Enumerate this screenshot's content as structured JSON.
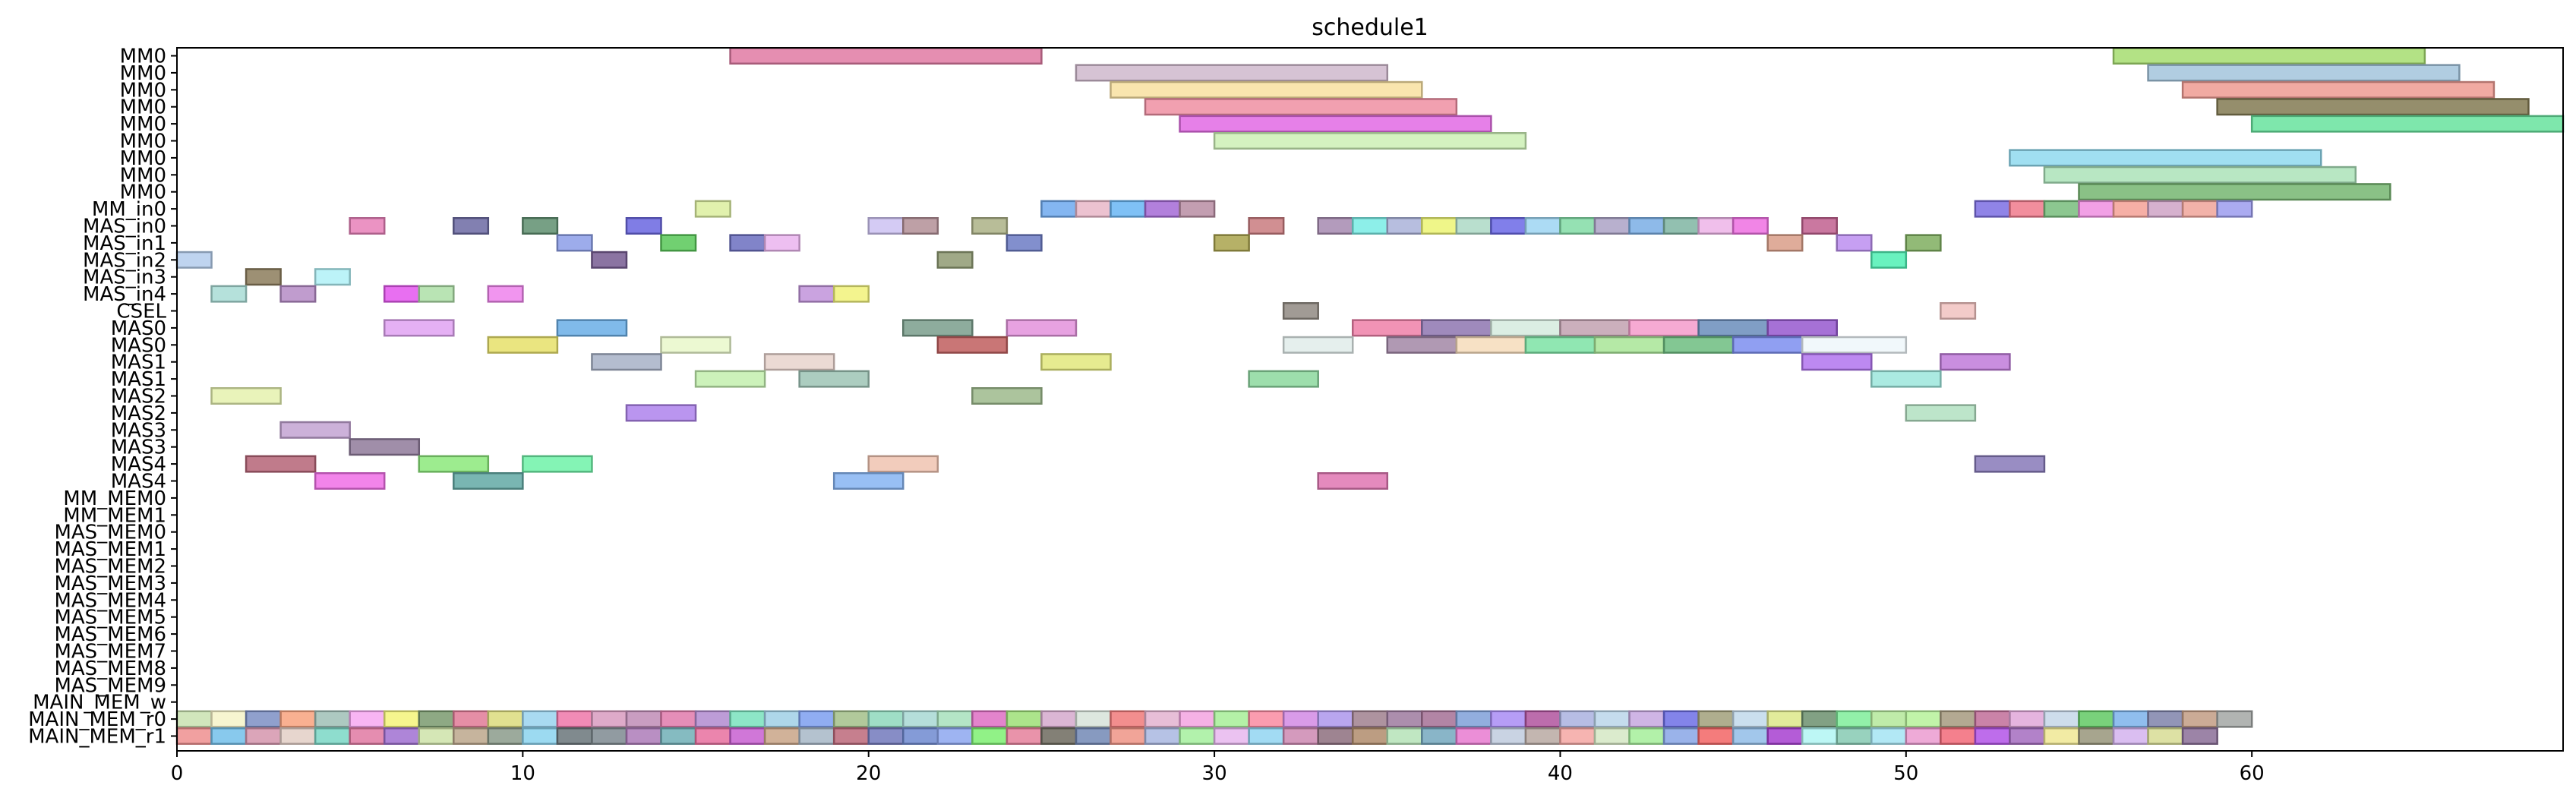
{
  "chart_data": {
    "type": "bar",
    "orientation": "horizontal",
    "title": "schedule1",
    "xlabel": "",
    "ylabel": "",
    "xlim": [
      0,
      69
    ],
    "xticks": [
      0,
      10,
      20,
      30,
      40,
      50,
      60
    ],
    "grid": false,
    "rows": [
      "MM0",
      "MM0",
      "MM0",
      "MM0",
      "MM0",
      "MM0",
      "MM0",
      "MM0",
      "MM0",
      "MM_in0",
      "MAS_in0",
      "MAS_in1",
      "MAS_in2",
      "MAS_in3",
      "MAS_in4",
      "CSEL",
      "MAS0",
      "MAS0",
      "MAS1",
      "MAS1",
      "MAS2",
      "MAS2",
      "MAS3",
      "MAS3",
      "MAS4",
      "MAS4",
      "MM_MEM0",
      "MM_MEM1",
      "MAS_MEM0",
      "MAS_MEM1",
      "MAS_MEM2",
      "MAS_MEM3",
      "MAS_MEM4",
      "MAS_MEM5",
      "MAS_MEM6",
      "MAS_MEM7",
      "MAS_MEM8",
      "MAS_MEM9",
      "MAIN_MEM_w",
      "MAIN_MEM_r0",
      "MAIN_MEM_r1"
    ],
    "tasks": [
      {
        "row": 0,
        "start": 16,
        "end": 25,
        "color": "#e07aa3"
      },
      {
        "row": 0,
        "start": 56,
        "end": 65,
        "color": "#a6dd70"
      },
      {
        "row": 1,
        "start": 26,
        "end": 35,
        "color": "#cfb8cc"
      },
      {
        "row": 1,
        "start": 57,
        "end": 66,
        "color": "#a3c4dc"
      },
      {
        "row": 2,
        "start": 27,
        "end": 36,
        "color": "#f8e0a0"
      },
      {
        "row": 2,
        "start": 58,
        "end": 67,
        "color": "#ef9b92"
      },
      {
        "row": 3,
        "start": 28,
        "end": 37,
        "color": "#ee8fa2"
      },
      {
        "row": 3,
        "start": 59,
        "end": 68,
        "color": "#837a52"
      },
      {
        "row": 4,
        "start": 29,
        "end": 38,
        "color": "#e26ae4"
      },
      {
        "row": 4,
        "start": 60,
        "end": 69,
        "color": "#67e39d"
      },
      {
        "row": 5,
        "start": 30,
        "end": 39,
        "color": "#ccf0b5"
      },
      {
        "row": 6,
        "start": 53,
        "end": 62,
        "color": "#8fd9ef"
      },
      {
        "row": 7,
        "start": 54,
        "end": 63,
        "color": "#abe3b9"
      },
      {
        "row": 8,
        "start": 55,
        "end": 64,
        "color": "#76b671"
      },
      {
        "row": 9,
        "start": 15,
        "end": 16,
        "color": "#dcef9f"
      },
      {
        "row": 9,
        "start": 25,
        "end": 26,
        "color": "#6ea9ef"
      },
      {
        "row": 9,
        "start": 26,
        "end": 27,
        "color": "#e9b7c8"
      },
      {
        "row": 9,
        "start": 27,
        "end": 28,
        "color": "#69b6f4"
      },
      {
        "row": 9,
        "start": 28,
        "end": 29,
        "color": "#a56ad6"
      },
      {
        "row": 9,
        "start": 29,
        "end": 30,
        "color": "#b98da3"
      },
      {
        "row": 9,
        "start": 52,
        "end": 53,
        "color": "#7d6fe3"
      },
      {
        "row": 9,
        "start": 53,
        "end": 54,
        "color": "#f07a8c"
      },
      {
        "row": 9,
        "start": 54,
        "end": 55,
        "color": "#78bd7c"
      },
      {
        "row": 9,
        "start": 55,
        "end": 56,
        "color": "#ef8fe1"
      },
      {
        "row": 9,
        "start": 56,
        "end": 57,
        "color": "#f4a196"
      },
      {
        "row": 9,
        "start": 57,
        "end": 58,
        "color": "#cfa3c6"
      },
      {
        "row": 9,
        "start": 58,
        "end": 59,
        "color": "#f0a49a"
      },
      {
        "row": 9,
        "start": 59,
        "end": 60,
        "color": "#9c9cef"
      },
      {
        "row": 10,
        "start": 5,
        "end": 6,
        "color": "#e880b9"
      },
      {
        "row": 10,
        "start": 8,
        "end": 9,
        "color": "#6c6aa3"
      },
      {
        "row": 10,
        "start": 10,
        "end": 11,
        "color": "#5f8f70"
      },
      {
        "row": 10,
        "start": 13,
        "end": 14,
        "color": "#6a66e0"
      },
      {
        "row": 10,
        "start": 20,
        "end": 21,
        "color": "#cdc2f2"
      },
      {
        "row": 10,
        "start": 21,
        "end": 22,
        "color": "#b38f97"
      },
      {
        "row": 10,
        "start": 23,
        "end": 24,
        "color": "#acb186"
      },
      {
        "row": 10,
        "start": 31,
        "end": 32,
        "color": "#c97b7f"
      },
      {
        "row": 10,
        "start": 33,
        "end": 34,
        "color": "#a68ab0"
      },
      {
        "row": 10,
        "start": 34,
        "end": 35,
        "color": "#79ece5"
      },
      {
        "row": 10,
        "start": 35,
        "end": 36,
        "color": "#aab3d9"
      },
      {
        "row": 10,
        "start": 36,
        "end": 37,
        "color": "#ecf474"
      },
      {
        "row": 10,
        "start": 37,
        "end": 38,
        "color": "#add9c6"
      },
      {
        "row": 10,
        "start": 38,
        "end": 39,
        "color": "#6b68e6"
      },
      {
        "row": 10,
        "start": 39,
        "end": 40,
        "color": "#9ed5f2"
      },
      {
        "row": 10,
        "start": 40,
        "end": 41,
        "color": "#83dca6"
      },
      {
        "row": 10,
        "start": 41,
        "end": 42,
        "color": "#aba2c5"
      },
      {
        "row": 10,
        "start": 42,
        "end": 43,
        "color": "#7aaee5"
      },
      {
        "row": 10,
        "start": 43,
        "end": 44,
        "color": "#7fb5a2"
      },
      {
        "row": 10,
        "start": 44,
        "end": 45,
        "color": "#edb4e8"
      },
      {
        "row": 10,
        "start": 45,
        "end": 46,
        "color": "#ee70e2"
      },
      {
        "row": 10,
        "start": 47,
        "end": 48,
        "color": "#c1608f"
      },
      {
        "row": 11,
        "start": 11,
        "end": 12,
        "color": "#8c9ee8"
      },
      {
        "row": 11,
        "start": 14,
        "end": 15,
        "color": "#58c858"
      },
      {
        "row": 11,
        "start": 16,
        "end": 17,
        "color": "#6b6fc0"
      },
      {
        "row": 11,
        "start": 17,
        "end": 18,
        "color": "#eab4ee"
      },
      {
        "row": 11,
        "start": 24,
        "end": 25,
        "color": "#6c7bc4"
      },
      {
        "row": 11,
        "start": 30,
        "end": 31,
        "color": "#a9a34c"
      },
      {
        "row": 11,
        "start": 46,
        "end": 47,
        "color": "#d99e88"
      },
      {
        "row": 11,
        "start": 48,
        "end": 49,
        "color": "#bc8ef0"
      },
      {
        "row": 11,
        "start": 50,
        "end": 51,
        "color": "#7fae5f"
      },
      {
        "row": 12,
        "start": 0,
        "end": 1,
        "color": "#b4cdec"
      },
      {
        "row": 12,
        "start": 12,
        "end": 13,
        "color": "#775c92"
      },
      {
        "row": 12,
        "start": 22,
        "end": 23,
        "color": "#8f9a72"
      },
      {
        "row": 12,
        "start": 49,
        "end": 50,
        "color": "#4ff0b4"
      },
      {
        "row": 13,
        "start": 2,
        "end": 3,
        "color": "#8c7c5c"
      },
      {
        "row": 13,
        "start": 4,
        "end": 5,
        "color": "#b0f1f7"
      },
      {
        "row": 14,
        "start": 1,
        "end": 2,
        "color": "#a8dcd5"
      },
      {
        "row": 14,
        "start": 3,
        "end": 4,
        "color": "#b58bc6"
      },
      {
        "row": 14,
        "start": 6,
        "end": 7,
        "color": "#e456ee"
      },
      {
        "row": 14,
        "start": 7,
        "end": 8,
        "color": "#addfa7"
      },
      {
        "row": 14,
        "start": 9,
        "end": 10,
        "color": "#ee82ec"
      },
      {
        "row": 14,
        "start": 18,
        "end": 19,
        "color": "#c193da"
      },
      {
        "row": 14,
        "start": 19,
        "end": 20,
        "color": "#f1f27a"
      },
      {
        "row": 15,
        "start": 32,
        "end": 33,
        "color": "#918a82"
      },
      {
        "row": 15,
        "start": 51,
        "end": 52,
        "color": "#f1c2c0"
      },
      {
        "row": 16,
        "start": 6,
        "end": 8,
        "color": "#e0a2f2"
      },
      {
        "row": 16,
        "start": 11,
        "end": 13,
        "color": "#6aaee6"
      },
      {
        "row": 16,
        "start": 21,
        "end": 23,
        "color": "#7a9e8c"
      },
      {
        "row": 16,
        "start": 24,
        "end": 26,
        "color": "#e392dc"
      },
      {
        "row": 16,
        "start": 34,
        "end": 36,
        "color": "#ee80a8"
      },
      {
        "row": 16,
        "start": 36,
        "end": 38,
        "color": "#8e76b0"
      },
      {
        "row": 16,
        "start": 38,
        "end": 40,
        "color": "#d5ebde"
      },
      {
        "row": 16,
        "start": 40,
        "end": 42,
        "color": "#c2a1b0"
      },
      {
        "row": 16,
        "start": 42,
        "end": 44,
        "color": "#f59bcb"
      },
      {
        "row": 16,
        "start": 44,
        "end": 46,
        "color": "#6a8dbb"
      },
      {
        "row": 16,
        "start": 46,
        "end": 48,
        "color": "#9658cf"
      },
      {
        "row": 17,
        "start": 9,
        "end": 11,
        "color": "#e6e06a"
      },
      {
        "row": 17,
        "start": 14,
        "end": 16,
        "color": "#e9f8ca"
      },
      {
        "row": 17,
        "start": 22,
        "end": 24,
        "color": "#c05e5e"
      },
      {
        "row": 17,
        "start": 32,
        "end": 34,
        "color": "#e1ecea"
      },
      {
        "row": 17,
        "start": 35,
        "end": 37,
        "color": "#a287a6"
      },
      {
        "row": 17,
        "start": 37,
        "end": 39,
        "color": "#f6dcbb"
      },
      {
        "row": 17,
        "start": 39,
        "end": 41,
        "color": "#7ce3a4"
      },
      {
        "row": 17,
        "start": 41,
        "end": 43,
        "color": "#a8e597"
      },
      {
        "row": 17,
        "start": 43,
        "end": 45,
        "color": "#6dbd80"
      },
      {
        "row": 17,
        "start": 45,
        "end": 47,
        "color": "#7c8ef0"
      },
      {
        "row": 17,
        "start": 47,
        "end": 50,
        "color": "#eef7fa"
      },
      {
        "row": 18,
        "start": 12,
        "end": 14,
        "color": "#a7b1c7"
      },
      {
        "row": 18,
        "start": 17,
        "end": 19,
        "color": "#e8d3cd"
      },
      {
        "row": 18,
        "start": 25,
        "end": 27,
        "color": "#e2e87c"
      },
      {
        "row": 18,
        "start": 47,
        "end": 49,
        "color": "#b174ef"
      },
      {
        "row": 18,
        "start": 51,
        "end": 53,
        "color": "#c07ad9"
      },
      {
        "row": 19,
        "start": 15,
        "end": 17,
        "color": "#c3f0ae"
      },
      {
        "row": 19,
        "start": 18,
        "end": 20,
        "color": "#9dc4b5"
      },
      {
        "row": 19,
        "start": 31,
        "end": 33,
        "color": "#8cd89e"
      },
      {
        "row": 19,
        "start": 49,
        "end": 51,
        "color": "#9ce6dc"
      },
      {
        "row": 20,
        "start": 1,
        "end": 3,
        "color": "#e5f1ae"
      },
      {
        "row": 20,
        "start": 23,
        "end": 25,
        "color": "#9dba8c"
      },
      {
        "row": 21,
        "start": 13,
        "end": 15,
        "color": "#ae82ec"
      },
      {
        "row": 21,
        "start": 50,
        "end": 52,
        "color": "#b2e0c1"
      },
      {
        "row": 22,
        "start": 3,
        "end": 5,
        "color": "#c3a3d2"
      },
      {
        "row": 23,
        "start": 5,
        "end": 7,
        "color": "#8f7a9a"
      },
      {
        "row": 24,
        "start": 2,
        "end": 4,
        "color": "#b56477"
      },
      {
        "row": 24,
        "start": 7,
        "end": 9,
        "color": "#8ce97b"
      },
      {
        "row": 24,
        "start": 10,
        "end": 12,
        "color": "#6ef2a8"
      },
      {
        "row": 24,
        "start": 20,
        "end": 22,
        "color": "#f0c3b0"
      },
      {
        "row": 24,
        "start": 52,
        "end": 54,
        "color": "#8779b8"
      },
      {
        "row": 25,
        "start": 4,
        "end": 6,
        "color": "#f06ee6"
      },
      {
        "row": 25,
        "start": 8,
        "end": 10,
        "color": "#62a9a4"
      },
      {
        "row": 25,
        "start": 19,
        "end": 21,
        "color": "#86b4f2"
      },
      {
        "row": 25,
        "start": 33,
        "end": 35,
        "color": "#df76b1"
      }
    ],
    "main_mem_r0_colors": [
      "#c9e2b0",
      "#f6f3c8",
      "#7c8fc4",
      "#f8a27e",
      "#9fbfb6",
      "#f7a8f1",
      "#f4f47a",
      "#7a9a6e",
      "#e07a96",
      "#dcdc7c",
      "#9ad3ee",
      "#ee77a9",
      "#d89bc0",
      "#c08cb6",
      "#e07aab",
      "#b28bd0",
      "#79e2bd",
      "#a0d0e6",
      "#7d9ff0",
      "#a3c08a",
      "#8ed8bc",
      "#a8d8d4",
      "#a7e0bc",
      "#de6fc3",
      "#9ddf77",
      "#d5a9cc",
      "#d7e3d9",
      "#f07a7a",
      "#e3b3d0",
      "#f3a3e0",
      "#a7ef98",
      "#fa8ba1",
      "#d28ae4",
      "#ad97ec",
      "#a0808e",
      "#9d7a9f",
      "#a47095",
      "#7fa0d8",
      "#a98cf5",
      "#b0539d",
      "#aab2df",
      "#bbd6ea",
      "#c7a8e0",
      "#6d6ee6",
      "#a1a07a",
      "#c1d9eb",
      "#dde78a",
      "#6c906e",
      "#7fed9a",
      "#b4e89a",
      "#b6f29a",
      "#a69a7f",
      "#c16d99",
      "#e0a7d9",
      "#c6d7e9",
      "#62c964",
      "#7cb3eb",
      "#7f83aa",
      "#c29c84",
      "#a3a7a5"
    ],
    "main_mem_r1_colors": [
      "#ee8f8f",
      "#73c0ea",
      "#d595ad",
      "#e3cfc6",
      "#7ad7c5",
      "#e179a2",
      "#a070d1",
      "#cee3a9",
      "#bca78c",
      "#8b9b8b",
      "#8bd3ef",
      "#6a757a",
      "#7e8a90",
      "#ad7bb9",
      "#70afb6",
      "#e7709f",
      "#c85fd1",
      "#c9a487",
      "#a7b7c7",
      "#bc687a",
      "#7279bc",
      "#6e89d0",
      "#8da7f0",
      "#7ef072",
      "#e5809b",
      "#6d6a5e",
      "#7288b5",
      "#ee9486",
      "#a9b7e0",
      "#a5f09e",
      "#e7b7ef",
      "#92d5f1",
      "#cd88b1",
      "#8d6f7e",
      "#b08c6c",
      "#b5e3b7",
      "#74a8be",
      "#e87ad0",
      "#c0cbde",
      "#b8a9a2",
      "#f4a7a3",
      "#d5e8c4",
      "#a5ef9a",
      "#88a6e6",
      "#f26565",
      "#92bde7",
      "#a73fd0",
      "#b1f6f3",
      "#86cab3",
      "#a5e4f3",
      "#eb9bd0",
      "#f26a79",
      "#b353e7",
      "#a56cc0",
      "#f0e894",
      "#98957a",
      "#d4b3ef",
      "#d7dc94",
      "#8b6e98"
    ],
    "main_mem_r0_start": 0,
    "main_mem_r1_start": 0
  }
}
